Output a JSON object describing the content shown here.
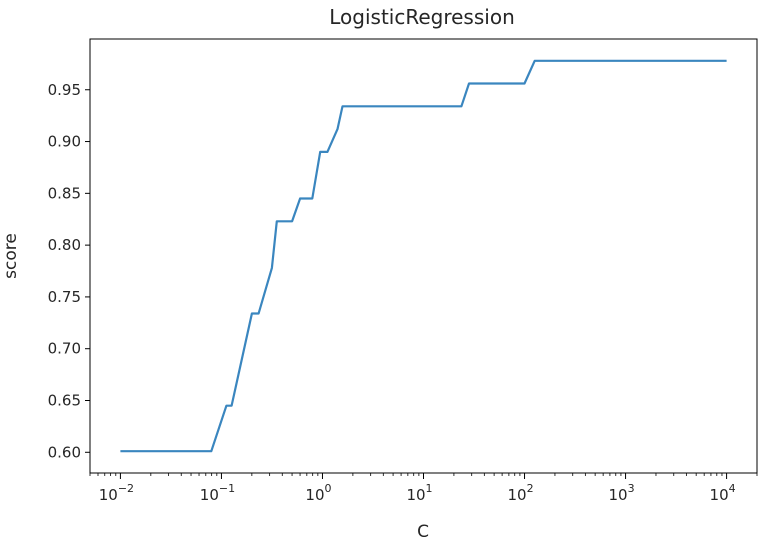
{
  "chart_data": {
    "type": "line",
    "title": "LogisticRegression",
    "xlabel": "C",
    "ylabel": "score",
    "xscale": "log",
    "xlim": [
      0.005,
      20000
    ],
    "ylim": [
      0.58,
      0.999
    ],
    "xticks": [
      {
        "value": 0.01,
        "base": "10",
        "exp": "−2"
      },
      {
        "value": 0.1,
        "base": "10",
        "exp": "−1"
      },
      {
        "value": 1,
        "base": "10",
        "exp": "0"
      },
      {
        "value": 10,
        "base": "10",
        "exp": "1"
      },
      {
        "value": 100,
        "base": "10",
        "exp": "2"
      },
      {
        "value": 1000,
        "base": "10",
        "exp": "3"
      },
      {
        "value": 10000,
        "base": "10",
        "exp": "4"
      }
    ],
    "yticks": [
      0.6,
      0.65,
      0.7,
      0.75,
      0.8,
      0.85,
      0.9,
      0.95
    ],
    "ytick_labels": [
      "0.60",
      "0.65",
      "0.70",
      "0.75",
      "0.80",
      "0.85",
      "0.90",
      "0.95"
    ],
    "grid": false,
    "series": [
      {
        "color": "#3a86bf",
        "x": [
          0.01,
          0.0794,
          0.112,
          0.126,
          0.2,
          0.233,
          0.316,
          0.353,
          0.5,
          0.6,
          0.794,
          0.95,
          1.12,
          1.41,
          1.58,
          1.78,
          23.7,
          28.2,
          100,
          126,
          10000
        ],
        "y": [
          0.601,
          0.601,
          0.645,
          0.645,
          0.734,
          0.734,
          0.778,
          0.823,
          0.823,
          0.845,
          0.845,
          0.89,
          0.89,
          0.912,
          0.934,
          0.934,
          0.934,
          0.956,
          0.956,
          0.978,
          0.978
        ]
      }
    ]
  }
}
